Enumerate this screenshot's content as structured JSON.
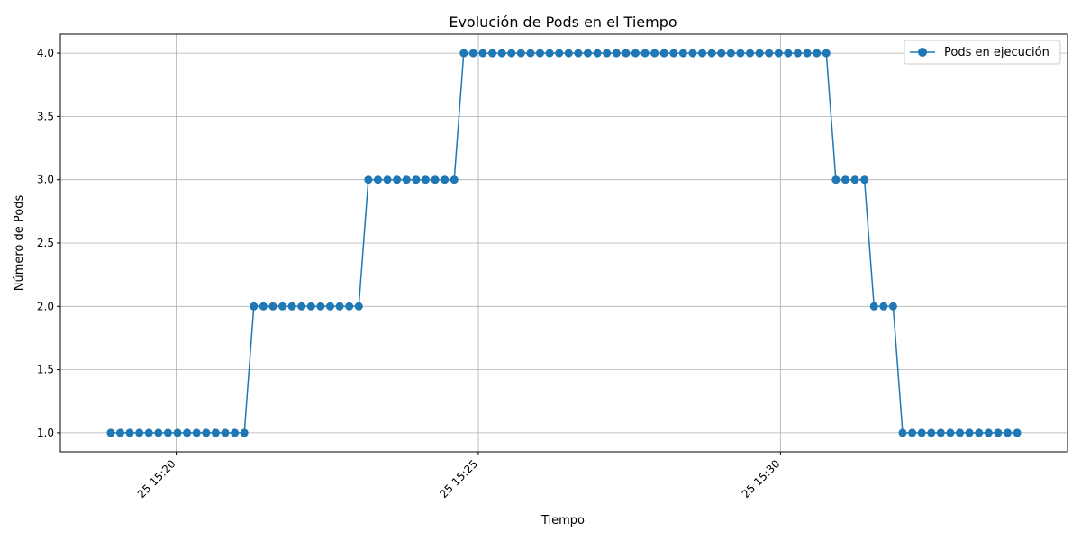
{
  "chart_data": {
    "type": "line",
    "title": "Evolución de Pods en el Tiempo",
    "xlabel": "Tiempo",
    "ylabel": "Número de Pods",
    "x_start": "25 15:18:55",
    "x_end": "25 15:33:55",
    "xlim": [
      "25 15:18:05",
      "25 15:34:45"
    ],
    "ylim": [
      0.85,
      4.15
    ],
    "x_ticks": [
      "25 15:20",
      "25 15:25",
      "25 15:30"
    ],
    "y_ticks": [
      "1.0",
      "1.5",
      "2.0",
      "2.5",
      "3.0",
      "3.5",
      "4.0"
    ],
    "grid": true,
    "legend": "top-right",
    "series": [
      {
        "name": "Pods en ejecución",
        "color": "#1f77b4",
        "marker": "circle",
        "values": [
          1,
          1,
          1,
          1,
          1,
          1,
          1,
          1,
          1,
          1,
          1,
          1,
          1,
          1,
          1,
          2,
          2,
          2,
          2,
          2,
          2,
          2,
          2,
          2,
          2,
          2,
          2,
          3,
          3,
          3,
          3,
          3,
          3,
          3,
          3,
          3,
          3,
          4,
          4,
          4,
          4,
          4,
          4,
          4,
          4,
          4,
          4,
          4,
          4,
          4,
          4,
          4,
          4,
          4,
          4,
          4,
          4,
          4,
          4,
          4,
          4,
          4,
          4,
          4,
          4,
          4,
          4,
          4,
          4,
          4,
          4,
          4,
          4,
          4,
          4,
          4,
          3,
          3,
          3,
          3,
          2,
          2,
          2,
          1,
          1,
          1,
          1,
          1,
          1,
          1,
          1,
          1,
          1,
          1,
          1,
          1
        ]
      }
    ]
  }
}
